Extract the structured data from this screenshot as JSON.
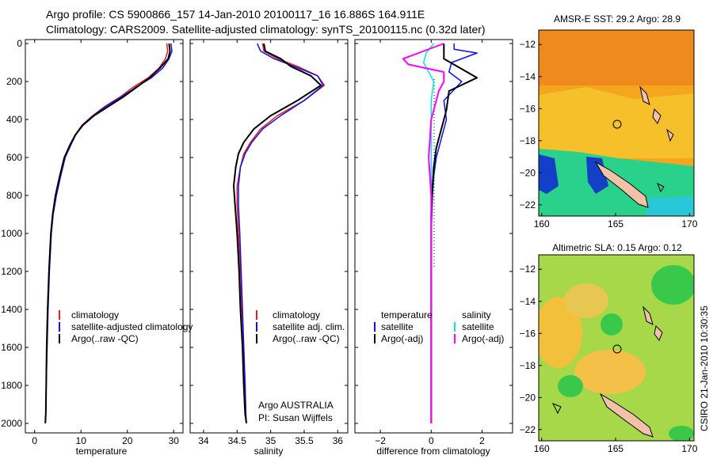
{
  "figure": {
    "title_line1": "Argo profile: CS 5900866_157 14-Jan-2010 20100117_16 16.886S 164.911E",
    "title_line2": "Climatology: CARS2009. Satellite-adjusted climatology: synTS_20100115.nc (0.32d later)",
    "timestamp": "CSIRO 21-Jan-2010 10:30:35",
    "credit_line1": "Argo AUSTRALIA",
    "credit_line2": "PI: Susan Wijffels"
  },
  "colors": {
    "climatology": "#e02020",
    "satellite": "#1010e0",
    "argo": "#000000",
    "sal_satellite": "#00e5ee",
    "sal_argo": "#ff00ff"
  },
  "chart_data": [
    {
      "type": "line",
      "id": "temperature",
      "xlabel": "temperature",
      "ylabel": "",
      "xlim": [
        -2,
        32
      ],
      "ylim": [
        2050,
        0
      ],
      "xticks": [
        0,
        10,
        20,
        30
      ],
      "yticks": [
        0,
        200,
        400,
        600,
        800,
        1000,
        1200,
        1400,
        1600,
        1800,
        2000
      ],
      "legend": [
        "climatology",
        "satellite-adjusted climatology",
        "Argo(..raw -QC)"
      ],
      "legend_position": "lower-right",
      "series": [
        {
          "name": "climatology",
          "color": "climatology",
          "x": [
            28.5,
            28.7,
            28.2,
            26.8,
            24.5,
            21.2,
            18.5,
            15.2,
            12.5,
            10.2,
            8.8,
            7.8,
            6.5,
            5.5,
            4.6,
            3.9,
            3.5,
            3.1,
            2.8,
            2.6,
            2.5,
            2.4,
            2.3
          ],
          "y": [
            0,
            40,
            80,
            130,
            180,
            230,
            280,
            330,
            380,
            430,
            480,
            530,
            600,
            700,
            800,
            900,
            1000,
            1200,
            1400,
            1600,
            1800,
            1950,
            2000
          ]
        },
        {
          "name": "satellite-adjusted climatology",
          "color": "satellite",
          "x": [
            29.4,
            29.6,
            29.0,
            27.6,
            25.2,
            21.8,
            18.8,
            15.4,
            12.6,
            10.3,
            8.9,
            7.9,
            6.6,
            5.6,
            4.7,
            4.0,
            3.6,
            3.2,
            2.9,
            2.7,
            2.5,
            2.4,
            2.3
          ],
          "y": [
            0,
            40,
            80,
            130,
            180,
            230,
            280,
            330,
            380,
            430,
            480,
            530,
            600,
            700,
            800,
            900,
            1000,
            1200,
            1400,
            1600,
            1800,
            1950,
            2000
          ]
        },
        {
          "name": "Argo(..raw -QC)",
          "color": "argo",
          "x": [
            29.0,
            29.2,
            28.8,
            27.0,
            24.8,
            22.0,
            19.2,
            16.0,
            12.8,
            10.4,
            8.8,
            7.7,
            6.4,
            5.4,
            4.5,
            3.9,
            3.5,
            3.1,
            2.8,
            2.6,
            2.5,
            2.4,
            2.3
          ],
          "y": [
            0,
            40,
            80,
            130,
            180,
            230,
            280,
            330,
            380,
            430,
            480,
            530,
            600,
            700,
            800,
            900,
            1000,
            1200,
            1400,
            1600,
            1800,
            1950,
            2000
          ]
        }
      ]
    },
    {
      "type": "line",
      "id": "salinity",
      "xlabel": "salinity",
      "ylabel": "",
      "xlim": [
        33.8,
        36.15
      ],
      "ylim": [
        2050,
        0
      ],
      "xticks": [
        34,
        34.5,
        35,
        35.5,
        36
      ],
      "legend": [
        "climatology",
        "satellite adj. clim.",
        "Argo(..raw -QC)"
      ],
      "legend_position": "lower-right",
      "series": [
        {
          "name": "climatology",
          "color": "climatology",
          "x": [
            34.88,
            34.9,
            35.1,
            35.4,
            35.7,
            35.8,
            35.5,
            35.1,
            34.85,
            34.7,
            34.6,
            34.55,
            34.5,
            34.5,
            34.52,
            34.55,
            34.57,
            34.6,
            34.62,
            34.63,
            34.64
          ],
          "y": [
            0,
            40,
            80,
            120,
            170,
            220,
            300,
            380,
            450,
            520,
            580,
            650,
            750,
            850,
            1000,
            1200,
            1400,
            1600,
            1800,
            1950,
            2000
          ]
        },
        {
          "name": "satellite adj. clim.",
          "color": "satellite",
          "x": [
            34.8,
            34.85,
            35.05,
            35.35,
            35.7,
            35.78,
            35.5,
            35.15,
            34.88,
            34.72,
            34.62,
            34.55,
            34.52,
            34.52,
            34.54,
            34.56,
            34.58,
            34.6,
            34.62,
            34.63,
            34.64
          ],
          "y": [
            0,
            40,
            80,
            120,
            170,
            220,
            300,
            380,
            450,
            520,
            580,
            650,
            750,
            850,
            1000,
            1200,
            1400,
            1600,
            1800,
            1950,
            2000
          ]
        },
        {
          "name": "Argo(..raw -QC)",
          "color": "argo",
          "x": [
            34.9,
            34.92,
            35.15,
            35.3,
            35.6,
            35.75,
            35.4,
            35.0,
            34.75,
            34.6,
            34.52,
            34.48,
            34.45,
            34.47,
            34.5,
            34.53,
            34.55,
            34.58,
            34.6,
            34.62,
            34.64
          ],
          "y": [
            0,
            40,
            80,
            120,
            170,
            220,
            300,
            380,
            450,
            520,
            580,
            650,
            750,
            850,
            1000,
            1200,
            1400,
            1600,
            1800,
            1950,
            2000
          ]
        }
      ]
    },
    {
      "type": "line",
      "id": "difference",
      "xlabel": "difference from climatology",
      "ylabel": "",
      "xlim": [
        -3,
        3.2
      ],
      "ylim": [
        2050,
        0
      ],
      "xticks": [
        -2,
        0,
        2
      ],
      "legend_groups": [
        {
          "heading": "temperature",
          "items": [
            "satellite",
            "Argo(-adj)"
          ]
        },
        {
          "heading": "salinity",
          "items": [
            "satellite",
            "Argo(-adj)"
          ]
        }
      ],
      "legend_position": "lower-center",
      "series": [
        {
          "name": "temperature satellite",
          "color": "satellite",
          "x": [
            0.9,
            0.9,
            1.8,
            0.8,
            0.7,
            1.2,
            0.5,
            0.6,
            0.4,
            0.2,
            0.1,
            0.05,
            0.0,
            0.0,
            0.0,
            0.0,
            0.0
          ],
          "y": [
            0,
            30,
            50,
            100,
            150,
            200,
            300,
            400,
            500,
            600,
            700,
            800,
            1000,
            1300,
            1600,
            1900,
            2000
          ]
        },
        {
          "name": "temperature Argo(-adj)",
          "color": "argo",
          "x": [
            0.5,
            0.5,
            0.5,
            1.8,
            0.7,
            0.6,
            0.4,
            0.2,
            0.1,
            0.05,
            0.0,
            0.0,
            0.0,
            0.0
          ],
          "y": [
            0,
            30,
            80,
            180,
            250,
            350,
            450,
            550,
            650,
            750,
            900,
            1200,
            1600,
            2000
          ]
        },
        {
          "name": "salinity satellite",
          "color": "sal_satellite",
          "x": [
            0.1,
            -0.2,
            -0.3,
            0.1,
            0.0,
            0.0,
            0.0,
            0.0,
            0.0,
            0.0
          ],
          "y": [
            0,
            50,
            100,
            200,
            300,
            500,
            800,
            1200,
            1600,
            2000
          ]
        },
        {
          "name": "salinity Argo(-adj)",
          "color": "sal_argo",
          "x": [
            0.5,
            -1.1,
            -0.9,
            0.5,
            0.5,
            0.3,
            0.0,
            -0.1,
            -0.05,
            0.0,
            0.0,
            0.0,
            0.0
          ],
          "y": [
            0,
            80,
            110,
            150,
            200,
            250,
            400,
            600,
            700,
            800,
            1200,
            1600,
            2000
          ]
        }
      ]
    }
  ],
  "maps": [
    {
      "id": "sst",
      "title": "AMSR-E SST: 29.2 Argo: 28.9",
      "lon_ticks": [
        160,
        165,
        170
      ],
      "lat_ticks": [
        -12,
        -14,
        -16,
        -18,
        -20,
        -22
      ],
      "lon_range": [
        159.8,
        170.3
      ],
      "lat_range": [
        -22.7,
        -11.1
      ],
      "float_position": {
        "lon": 164.911,
        "lat": -16.886
      }
    },
    {
      "id": "sla",
      "title": "Altimetric SLA: 0.15 Argo: 0.12",
      "lon_ticks": [
        160,
        165,
        170
      ],
      "lat_ticks": [
        -12,
        -14,
        -16,
        -18,
        -20,
        -22
      ],
      "lon_range": [
        159.8,
        170.3
      ],
      "lat_range": [
        -22.7,
        -11.1
      ],
      "float_position": {
        "lon": 164.911,
        "lat": -16.886
      }
    }
  ]
}
